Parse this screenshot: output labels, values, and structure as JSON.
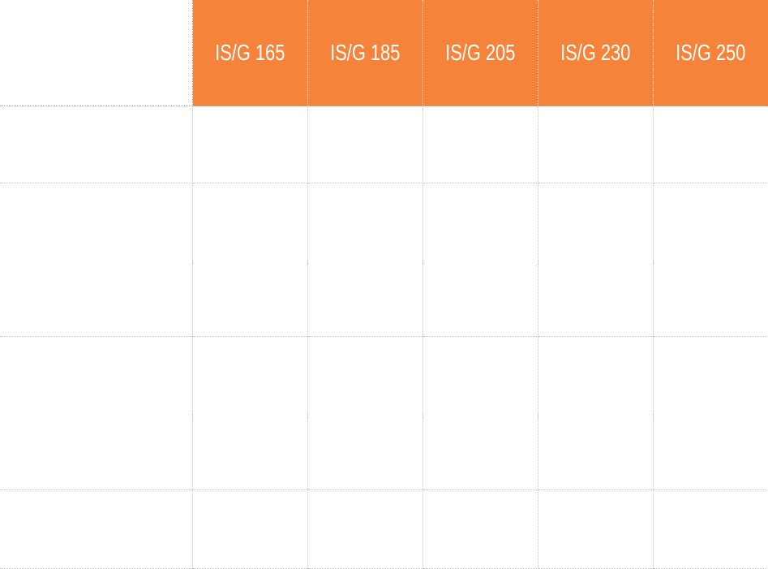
{
  "table": {
    "accent_color": "#F5833A",
    "columns": [
      "IS/G 165",
      "IS/G 185",
      "IS/G 205",
      "IS/G 230",
      "IS/G 250"
    ],
    "row_labels": [
      "",
      "",
      "",
      ""
    ]
  }
}
